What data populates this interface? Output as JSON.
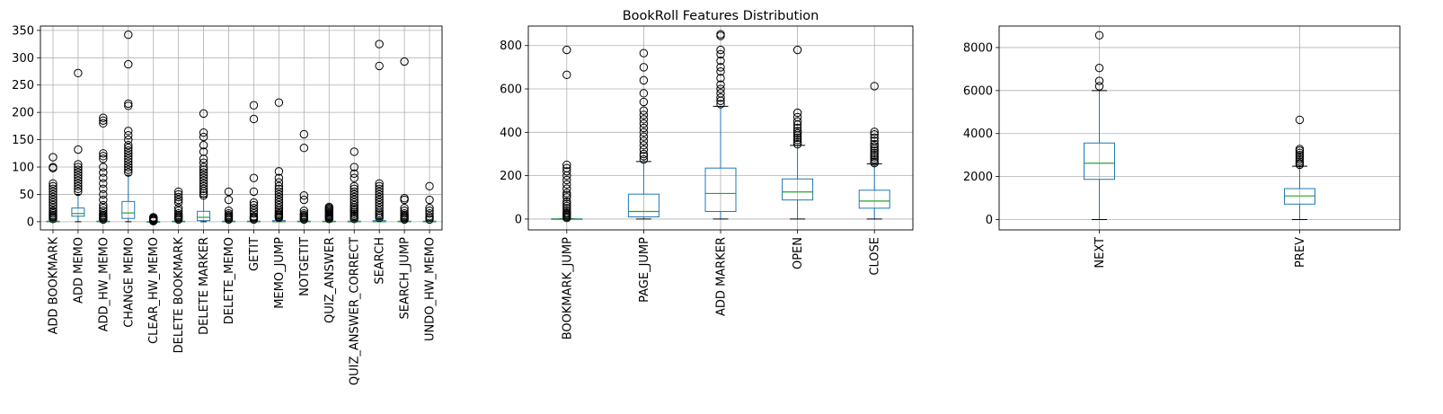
{
  "title": "BookRoll Features Distribution",
  "chart_data": [
    {
      "type": "box",
      "title": "",
      "ylim": [
        -15,
        358
      ],
      "yticks": [
        0,
        50,
        100,
        150,
        200,
        250,
        300,
        350
      ],
      "grid": true,
      "colors": {
        "box": "#1f77b4",
        "median": "#2ca02c",
        "whisker": "#000000",
        "flier": "#000000"
      },
      "categories": [
        "ADD BOOKMARK",
        "ADD MEMO",
        "ADD_HW_MEMO",
        "CHANGE MEMO",
        "CLEAR_HW_MEMO",
        "DELETE BOOKMARK",
        "DELETE MARKER",
        "DELETE_MEMO",
        "GETIT",
        "MEMO_JUMP",
        "NOTGETIT",
        "QUIZ_ANSWER",
        "QUIZ_ANSWER_CORRECT",
        "SEARCH",
        "SEARCH_JUMP",
        "UNDO_HW_MEMO"
      ],
      "boxes": [
        {
          "whislo": 0,
          "q1": 0,
          "med": 0,
          "q3": 1,
          "whishi": 3,
          "fliers": [
            5,
            8,
            10,
            12,
            15,
            18,
            20,
            25,
            30,
            35,
            40,
            45,
            50,
            55,
            60,
            65,
            70,
            98,
            100,
            118
          ]
        },
        {
          "whislo": 0,
          "q1": 10,
          "med": 15,
          "q3": 25,
          "whishi": 50,
          "fliers": [
            55,
            60,
            65,
            70,
            75,
            80,
            85,
            90,
            95,
            100,
            105,
            132,
            272
          ]
        },
        {
          "whislo": 0,
          "q1": 0,
          "med": 0,
          "q3": 1,
          "whishi": 2,
          "fliers": [
            4,
            6,
            8,
            10,
            12,
            15,
            20,
            25,
            30,
            40,
            50,
            60,
            70,
            80,
            90,
            100,
            115,
            120,
            125,
            180,
            185,
            190
          ]
        },
        {
          "whislo": 0,
          "q1": 6,
          "med": 16,
          "q3": 37,
          "whishi": 85,
          "fliers": [
            90,
            95,
            100,
            105,
            110,
            115,
            120,
            125,
            130,
            135,
            140,
            150,
            158,
            166,
            212,
            216,
            288,
            342
          ]
        },
        {
          "whislo": 0,
          "q1": 0,
          "med": 0,
          "q3": 0,
          "whishi": 0,
          "fliers": [
            1,
            2,
            3,
            4,
            5,
            6,
            7,
            8
          ]
        },
        {
          "whislo": 0,
          "q1": 0,
          "med": 0,
          "q3": 1,
          "whishi": 2,
          "fliers": [
            4,
            6,
            8,
            10,
            12,
            15,
            20,
            25,
            35,
            40,
            45,
            50,
            55
          ]
        },
        {
          "whislo": 0,
          "q1": 2,
          "med": 8,
          "q3": 19,
          "whishi": 45,
          "fliers": [
            48,
            52,
            56,
            60,
            65,
            70,
            75,
            80,
            85,
            90,
            95,
            100,
            108,
            115,
            128,
            140,
            155,
            163,
            198
          ]
        },
        {
          "whislo": 0,
          "q1": 0,
          "med": 0,
          "q3": 1,
          "whishi": 2,
          "fliers": [
            4,
            6,
            8,
            10,
            12,
            15,
            20,
            40,
            55
          ]
        },
        {
          "whislo": 0,
          "q1": 0,
          "med": 0,
          "q3": 1,
          "whishi": 2,
          "fliers": [
            4,
            6,
            8,
            10,
            15,
            20,
            25,
            30,
            35,
            55,
            80,
            188,
            213
          ]
        },
        {
          "whislo": 0,
          "q1": 0,
          "med": 0,
          "q3": 2,
          "whishi": 5,
          "fliers": [
            7,
            9,
            11,
            13,
            15,
            18,
            21,
            25,
            30,
            35,
            40,
            45,
            50,
            55,
            60,
            65,
            72,
            80,
            92,
            218
          ]
        },
        {
          "whislo": 0,
          "q1": 0,
          "med": 0,
          "q3": 1,
          "whishi": 2,
          "fliers": [
            4,
            6,
            8,
            10,
            12,
            15,
            20,
            40,
            48,
            135,
            160
          ]
        },
        {
          "whislo": 0,
          "q1": 0,
          "med": 0,
          "q3": 1,
          "whishi": 3,
          "fliers": [
            5,
            7,
            9,
            11,
            13,
            15,
            17,
            19,
            21,
            23,
            25,
            27
          ]
        },
        {
          "whislo": 0,
          "q1": 0,
          "med": 0,
          "q3": 1,
          "whishi": 3,
          "fliers": [
            5,
            8,
            11,
            14,
            17,
            20,
            23,
            26,
            30,
            35,
            40,
            45,
            50,
            55,
            60,
            65,
            80,
            88,
            100,
            128
          ]
        },
        {
          "whislo": 0,
          "q1": 0,
          "med": 0,
          "q3": 2,
          "whishi": 5,
          "fliers": [
            7,
            10,
            13,
            16,
            20,
            25,
            30,
            35,
            40,
            45,
            50,
            55,
            60,
            65,
            70,
            285,
            325
          ]
        },
        {
          "whislo": 0,
          "q1": 0,
          "med": 0,
          "q3": 1,
          "whishi": 2,
          "fliers": [
            4,
            6,
            8,
            10,
            12,
            15,
            20,
            25,
            40,
            43,
            293
          ]
        },
        {
          "whislo": 0,
          "q1": 0,
          "med": 0,
          "q3": 1,
          "whishi": 2,
          "fliers": [
            4,
            7,
            10,
            15,
            20,
            25,
            40,
            65
          ]
        }
      ]
    },
    {
      "type": "box",
      "title": "BookRoll Features Distribution",
      "ylim": [
        -50,
        890
      ],
      "yticks": [
        0,
        200,
        400,
        600,
        800
      ],
      "grid": true,
      "colors": {
        "box": "#1f77b4",
        "median": "#2ca02c",
        "whisker": "#000000",
        "flier": "#000000"
      },
      "categories": [
        "BOOKMARK_JUMP",
        "PAGE_JUMP",
        "ADD MARKER",
        "OPEN",
        "CLOSE"
      ],
      "boxes": [
        {
          "whislo": 0,
          "q1": 0,
          "med": 0,
          "q3": 1,
          "whishi": 2,
          "fliers": [
            5,
            10,
            15,
            20,
            25,
            30,
            40,
            50,
            60,
            70,
            80,
            100,
            110,
            120,
            140,
            160,
            180,
            200,
            220,
            235,
            250,
            665,
            780
          ]
        },
        {
          "whislo": 0,
          "q1": 10,
          "med": 35,
          "q3": 115,
          "whishi": 265,
          "fliers": [
            275,
            290,
            300,
            320,
            340,
            360,
            380,
            400,
            420,
            440,
            460,
            480,
            500,
            540,
            580,
            640,
            700,
            765
          ]
        },
        {
          "whislo": 0,
          "q1": 35,
          "med": 118,
          "q3": 235,
          "whishi": 520,
          "fliers": [
            530,
            545,
            560,
            580,
            600,
            620,
            650,
            680,
            700,
            730,
            760,
            780,
            845,
            852
          ]
        },
        {
          "whislo": 0,
          "q1": 88,
          "med": 125,
          "q3": 185,
          "whishi": 340,
          "fliers": [
            345,
            355,
            365,
            375,
            385,
            395,
            405,
            420,
            435,
            450,
            470,
            490,
            780
          ]
        },
        {
          "whislo": 0,
          "q1": 50,
          "med": 83,
          "q3": 133,
          "whishi": 255,
          "fliers": [
            258,
            265,
            275,
            285,
            295,
            305,
            315,
            325,
            335,
            345,
            360,
            375,
            390,
            402,
            613
          ]
        }
      ]
    },
    {
      "type": "box",
      "title": "",
      "ylim": [
        -480,
        9000
      ],
      "yticks": [
        0,
        2000,
        4000,
        6000,
        8000
      ],
      "grid": true,
      "colors": {
        "box": "#1f77b4",
        "median": "#2ca02c",
        "whisker": "#000000",
        "flier": "#000000"
      },
      "categories": [
        "NEXT",
        "PREV"
      ],
      "boxes": [
        {
          "whislo": 0,
          "q1": 1870,
          "med": 2620,
          "q3": 3560,
          "whishi": 6000,
          "fliers": [
            6200,
            6450,
            7050,
            8570
          ]
        },
        {
          "whislo": 0,
          "q1": 720,
          "med": 1100,
          "q3": 1440,
          "whishi": 2480,
          "fliers": [
            2550,
            2620,
            2700,
            2800,
            2900,
            3000,
            3100,
            3200,
            3280,
            4640
          ]
        }
      ]
    }
  ]
}
